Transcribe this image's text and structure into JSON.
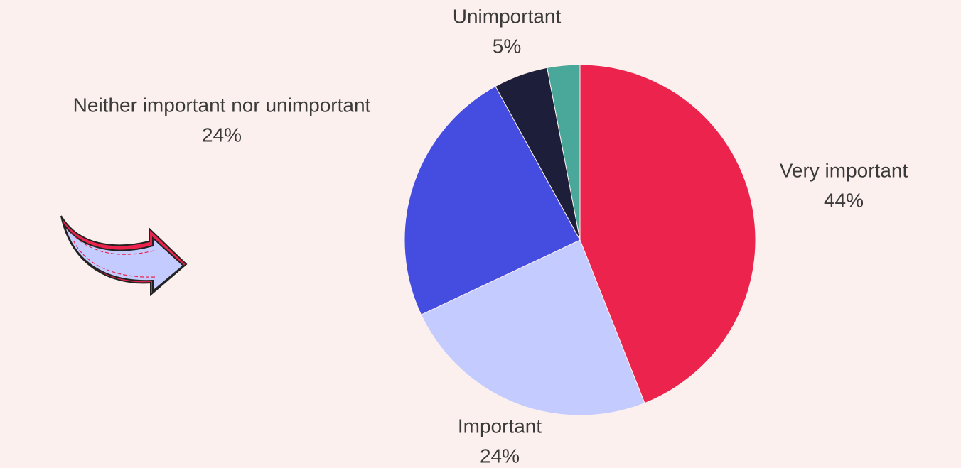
{
  "chart_data": {
    "type": "pie",
    "categories": [
      "Very important",
      "Important",
      "Neither important nor unimportant",
      "Unimportant",
      null
    ],
    "values": [
      44,
      24,
      24,
      5,
      3
    ],
    "value_labels": [
      "44%",
      "24%",
      "24%",
      "5%",
      null
    ],
    "colors": [
      "#ec234d",
      "#c3cbff",
      "#444ddf",
      "#1c1e3a",
      "#4aa89b"
    ],
    "start_angle": "top",
    "direction": "clockwise"
  }
}
